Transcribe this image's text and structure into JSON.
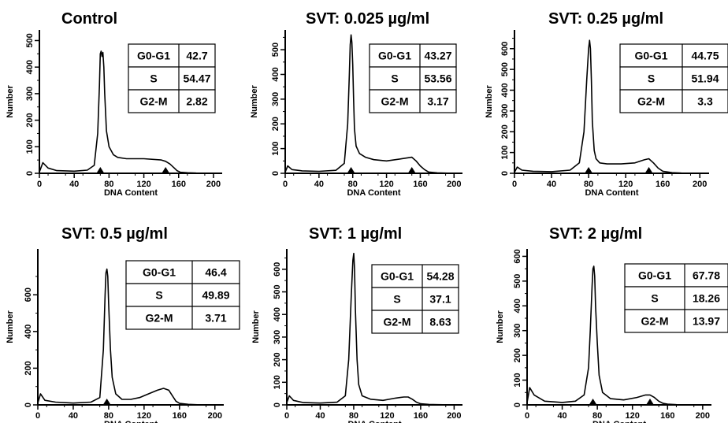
{
  "chart_data": [
    {
      "type": "line",
      "title": "Control",
      "xlabel": "DNA Content",
      "ylabel": "Number",
      "xlim": [
        0,
        210
      ],
      "ylim": [
        0,
        540
      ],
      "xticks": [
        "0",
        "40",
        "80",
        "120",
        "160",
        "200"
      ],
      "yticks": [
        "0",
        "100",
        "200",
        "300",
        "400",
        "500"
      ],
      "markers": [
        70,
        145
      ],
      "table": [
        [
          "G0-G1",
          "42.7"
        ],
        [
          "S",
          "54.47"
        ],
        [
          "G2-M",
          "2.82"
        ]
      ],
      "x": [
        0,
        4,
        10,
        20,
        40,
        55,
        63,
        67,
        69,
        70,
        71,
        72,
        73,
        74,
        75,
        77,
        80,
        85,
        90,
        100,
        120,
        140,
        145,
        150,
        155,
        158,
        162,
        170,
        180,
        200
      ],
      "y": [
        5,
        40,
        20,
        10,
        8,
        12,
        30,
        150,
        330,
        450,
        460,
        440,
        455,
        400,
        300,
        160,
        100,
        70,
        60,
        55,
        55,
        50,
        45,
        35,
        20,
        10,
        4,
        2,
        1,
        0
      ]
    },
    {
      "type": "line",
      "title": "SVT: 0.025 µg/ml",
      "xlabel": "DNA Content",
      "ylabel": "Number",
      "xlim": [
        0,
        210
      ],
      "ylim": [
        0,
        580
      ],
      "xticks": [
        "0",
        "40",
        "80",
        "120",
        "160",
        "200"
      ],
      "yticks": [
        "0",
        "100",
        "200",
        "300",
        "400",
        "500"
      ],
      "markers": [
        78,
        150
      ],
      "table": [
        [
          "G0-G1",
          "43.27"
        ],
        [
          "S",
          "53.56"
        ],
        [
          "G2-M",
          "3.17"
        ]
      ],
      "x": [
        0,
        3,
        8,
        20,
        40,
        60,
        70,
        74,
        76,
        77,
        78,
        79,
        80,
        81,
        82,
        84,
        88,
        95,
        105,
        120,
        140,
        150,
        155,
        160,
        165,
        170,
        180,
        200
      ],
      "y": [
        5,
        30,
        15,
        10,
        8,
        12,
        40,
        200,
        400,
        520,
        560,
        530,
        440,
        300,
        180,
        110,
        80,
        65,
        55,
        50,
        60,
        65,
        50,
        30,
        15,
        5,
        2,
        0
      ]
    },
    {
      "type": "line",
      "title": "SVT: 0.25 µg/ml",
      "xlabel": "DNA Content",
      "ylabel": "Number",
      "xlim": [
        0,
        210
      ],
      "ylim": [
        0,
        690
      ],
      "xticks": [
        "0",
        "40",
        "80",
        "120",
        "160",
        "200"
      ],
      "yticks": [
        "0",
        "100",
        "200",
        "300",
        "400",
        "500",
        "600"
      ],
      "markers": [
        80,
        145
      ],
      "table": [
        [
          "G0-G1",
          "44.75"
        ],
        [
          "S",
          "51.94"
        ],
        [
          "G2-M",
          "3.3"
        ]
      ],
      "x": [
        0,
        3,
        8,
        20,
        40,
        60,
        70,
        75,
        78,
        80,
        81,
        82,
        83,
        84,
        86,
        88,
        92,
        100,
        115,
        130,
        140,
        145,
        150,
        155,
        160,
        170,
        180,
        200
      ],
      "y": [
        5,
        30,
        15,
        10,
        8,
        15,
        50,
        200,
        450,
        600,
        640,
        600,
        450,
        250,
        110,
        70,
        50,
        45,
        45,
        50,
        65,
        70,
        50,
        25,
        10,
        3,
        1,
        0
      ]
    },
    {
      "type": "line",
      "title": "SVT: 0.5 µg/ml",
      "xlabel": "DNA Content",
      "ylabel": "Number",
      "xlim": [
        0,
        210
      ],
      "ylim": [
        0,
        850
      ],
      "xticks": [
        "0",
        "40",
        "80",
        "120",
        "160",
        "200"
      ],
      "yticks": [
        "0",
        "200",
        "400",
        "600"
      ],
      "markers": [
        78
      ],
      "table": [
        [
          "G0-G1",
          "46.4"
        ],
        [
          "S",
          "49.89"
        ],
        [
          "G2-M",
          "3.71"
        ]
      ],
      "x": [
        0,
        3,
        8,
        20,
        40,
        60,
        70,
        74,
        76,
        77,
        78,
        79,
        80,
        82,
        84,
        88,
        95,
        105,
        115,
        125,
        135,
        142,
        148,
        152,
        156,
        160,
        170,
        180,
        200
      ],
      "y": [
        10,
        60,
        25,
        15,
        10,
        15,
        40,
        300,
        600,
        720,
        740,
        700,
        550,
        300,
        150,
        60,
        30,
        30,
        40,
        60,
        80,
        90,
        80,
        50,
        20,
        8,
        3,
        1,
        0
      ]
    },
    {
      "type": "line",
      "title": "SVT: 1 µg/ml",
      "xlabel": "DNA Content",
      "ylabel": "Number",
      "xlim": [
        0,
        210
      ],
      "ylim": [
        0,
        690
      ],
      "xticks": [
        "0",
        "40",
        "80",
        "120",
        "160",
        "200"
      ],
      "yticks": [
        "0",
        "100",
        "200",
        "300",
        "400",
        "500",
        "600"
      ],
      "markers": [],
      "table": [
        [
          "G0-G1",
          "54.28"
        ],
        [
          "S",
          "37.1"
        ],
        [
          "G2-M",
          "8.63"
        ]
      ],
      "x": [
        0,
        3,
        8,
        20,
        40,
        60,
        70,
        74,
        77,
        79,
        80,
        81,
        82,
        84,
        86,
        90,
        100,
        115,
        130,
        140,
        145,
        150,
        155,
        160,
        170,
        180,
        200
      ],
      "y": [
        10,
        40,
        20,
        10,
        8,
        12,
        40,
        200,
        480,
        640,
        670,
        600,
        420,
        200,
        90,
        40,
        25,
        20,
        30,
        35,
        35,
        25,
        12,
        5,
        2,
        1,
        0
      ]
    },
    {
      "type": "line",
      "title": "SVT:  2 µg/ml",
      "xlabel": "DNA Content",
      "ylabel": "Number",
      "xlim": [
        0,
        210
      ],
      "ylim": [
        0,
        630
      ],
      "xticks": [
        "0",
        "40",
        "80",
        "120",
        "160",
        "200"
      ],
      "yticks": [
        "0",
        "100",
        "200",
        "300",
        "400",
        "500",
        "600"
      ],
      "markers": [
        75,
        140
      ],
      "table": [
        [
          "G0-G1",
          "67.78"
        ],
        [
          "S",
          "18.26"
        ],
        [
          "G2-M",
          "13.97"
        ]
      ],
      "x": [
        0,
        3,
        8,
        20,
        40,
        55,
        65,
        70,
        72,
        74,
        75,
        76,
        77,
        78,
        80,
        82,
        86,
        95,
        110,
        125,
        135,
        140,
        145,
        150,
        155,
        160,
        170,
        180,
        200
      ],
      "y": [
        10,
        70,
        40,
        15,
        10,
        15,
        40,
        150,
        300,
        480,
        550,
        560,
        520,
        400,
        250,
        120,
        50,
        25,
        20,
        30,
        40,
        40,
        30,
        15,
        6,
        3,
        1,
        0,
        0
      ]
    }
  ]
}
